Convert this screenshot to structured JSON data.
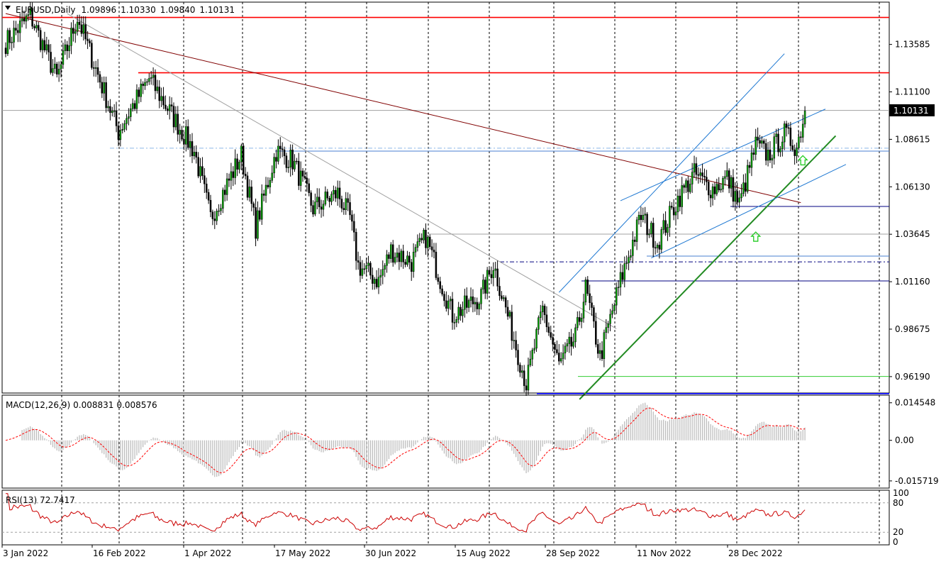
{
  "symbol_header": {
    "symbol": "EURUSD,Daily",
    "open": "1.09896",
    "high": "1.10330",
    "low": "1.09840",
    "close": "1.10131"
  },
  "macd_header": {
    "label": "MACD(12,26,9)",
    "main": "0.008831",
    "signal": "0.008576"
  },
  "rsi_header": {
    "label": "RSI(13)",
    "value": "72.7417"
  },
  "current_price_label": "1.10131",
  "chart_data": {
    "type": "candlestick",
    "x_labels": [
      "3 Jan 2022",
      "16 Feb 2022",
      "1 Apr 2022",
      "17 May 2022",
      "30 Jun 2022",
      "15 Aug 2022",
      "28 Sep 2022",
      "11 Nov 2022",
      "28 Dec 2022"
    ],
    "price_axis": {
      "ticks": [
        "1.13585",
        "1.11100",
        "1.08615",
        "1.06130",
        "1.03645",
        "1.01160",
        "0.98675",
        "0.96190"
      ],
      "range": [
        0.9533,
        1.158
      ]
    },
    "macd_axis": {
      "ticks": [
        "0.014548",
        "0.00",
        "-0.015719"
      ],
      "range": [
        -0.0185,
        0.0175
      ]
    },
    "rsi_axis": {
      "ticks": [
        "100",
        "80",
        "20",
        "0"
      ],
      "levels": [
        80,
        20
      ],
      "range": [
        0,
        100
      ]
    },
    "price_path": [
      {
        "x": 0,
        "p": 1.137
      },
      {
        "x": 12,
        "p": 1.151
      },
      {
        "x": 25,
        "p": 1.118
      },
      {
        "x": 35,
        "p": 1.15
      },
      {
        "x": 55,
        "p": 1.09
      },
      {
        "x": 60,
        "p": 1.1
      },
      {
        "x": 70,
        "p": 1.118
      },
      {
        "x": 92,
        "p": 1.08
      },
      {
        "x": 100,
        "p": 1.045
      },
      {
        "x": 115,
        "p": 1.078
      },
      {
        "x": 122,
        "p": 1.04
      },
      {
        "x": 132,
        "p": 1.08
      },
      {
        "x": 140,
        "p": 1.075
      },
      {
        "x": 150,
        "p": 1.05
      },
      {
        "x": 162,
        "p": 1.058
      },
      {
        "x": 168,
        "p": 1.045
      },
      {
        "x": 172,
        "p": 1.02
      },
      {
        "x": 182,
        "p": 1.012
      },
      {
        "x": 188,
        "p": 1.028
      },
      {
        "x": 198,
        "p": 1.022
      },
      {
        "x": 205,
        "p": 1.035
      },
      {
        "x": 218,
        "p": 0.994
      },
      {
        "x": 232,
        "p": 1.004
      },
      {
        "x": 238,
        "p": 1.021
      },
      {
        "x": 248,
        "p": 0.982
      },
      {
        "x": 254,
        "p": 0.958
      },
      {
        "x": 262,
        "p": 0.997
      },
      {
        "x": 270,
        "p": 0.968
      },
      {
        "x": 278,
        "p": 0.982
      },
      {
        "x": 283,
        "p": 1.008
      },
      {
        "x": 290,
        "p": 0.972
      },
      {
        "x": 300,
        "p": 1.012
      },
      {
        "x": 310,
        "p": 1.046
      },
      {
        "x": 318,
        "p": 1.032
      },
      {
        "x": 328,
        "p": 1.055
      },
      {
        "x": 336,
        "p": 1.068
      },
      {
        "x": 345,
        "p": 1.06
      },
      {
        "x": 352,
        "p": 1.066
      },
      {
        "x": 358,
        "p": 1.052
      },
      {
        "x": 366,
        "p": 1.083
      },
      {
        "x": 372,
        "p": 1.078
      },
      {
        "x": 380,
        "p": 1.089
      },
      {
        "x": 386,
        "p": 1.082
      },
      {
        "x": 390,
        "p": 1.101
      }
    ],
    "horizontal_levels": [
      {
        "price": 1.15,
        "color": "#ff0000"
      },
      {
        "price": 1.121,
        "color": "#ff0000"
      },
      {
        "price": 1.1013,
        "color": "#a0a0a0"
      },
      {
        "price": 1.08,
        "color": "#4a7fd0"
      },
      {
        "price": 1.051,
        "color": "#000080"
      },
      {
        "price": 1.0365,
        "color": "#a0a0a0"
      },
      {
        "price": 1.025,
        "color": "#4a7fd0"
      },
      {
        "price": 1.022,
        "color": "#000080"
      },
      {
        "price": 1.012,
        "color": "#000080"
      },
      {
        "price": 0.962,
        "color": "#32cd32"
      },
      {
        "price": 0.953,
        "color": "#0000ff"
      }
    ],
    "trendlines": [
      {
        "from": [
          0,
          1.152
        ],
        "to": [
          388,
          1.053
        ],
        "color": "#800000"
      },
      {
        "from": [
          30,
          1.152
        ],
        "to": [
          298,
          0.987
        ],
        "color": "#a0a0a0"
      },
      {
        "from": [
          280,
          0.95
        ],
        "to": [
          405,
          1.088
        ],
        "color": "#228b22"
      },
      {
        "from": [
          270,
          1.006
        ],
        "to": [
          380,
          1.131
        ],
        "color": "#1e78d2"
      },
      {
        "from": [
          315,
          1.024
        ],
        "to": [
          410,
          1.073
        ],
        "color": "#1e78d2"
      },
      {
        "from": [
          300,
          1.054
        ],
        "to": [
          400,
          1.102
        ],
        "color": "#1e78d2"
      }
    ],
    "arrows": [
      {
        "x": 366,
        "p": 1.035
      },
      {
        "x": 389,
        "p": 1.075
      }
    ]
  }
}
